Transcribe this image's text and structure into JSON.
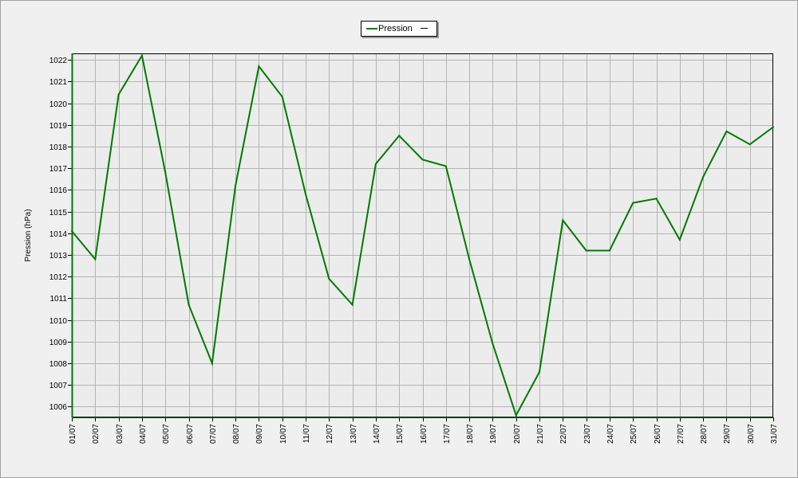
{
  "legend": {
    "label": "Pression"
  },
  "chart_data": {
    "type": "line",
    "title": "",
    "xlabel": "",
    "ylabel": "Pression (hPa)",
    "ylim": [
      1005.5,
      1022.3
    ],
    "yticks": [
      1006,
      1007,
      1008,
      1009,
      1010,
      1011,
      1012,
      1013,
      1014,
      1015,
      1016,
      1017,
      1018,
      1019,
      1020,
      1021,
      1022
    ],
    "grid": true,
    "legend_position": "top-center",
    "categories": [
      "01/07",
      "02/07",
      "03/07",
      "04/07",
      "05/07",
      "06/07",
      "07/07",
      "08/07",
      "09/07",
      "10/07",
      "11/07",
      "12/07",
      "13/07",
      "14/07",
      "15/07",
      "16/07",
      "17/07",
      "18/07",
      "19/07",
      "20/07",
      "21/07",
      "22/07",
      "23/07",
      "24/07",
      "25/07",
      "26/07",
      "27/07",
      "28/07",
      "29/07",
      "30/07",
      "31/07"
    ],
    "series": [
      {
        "name": "Pression",
        "color": "#007a00",
        "values": [
          1014.1,
          1012.8,
          1020.4,
          1022.2,
          1016.8,
          1010.7,
          1008.0,
          1016.2,
          1021.7,
          1020.3,
          1015.8,
          1011.9,
          1010.7,
          1017.2,
          1018.5,
          1017.4,
          1017.1,
          1012.8,
          1008.9,
          1005.6,
          1007.6,
          1014.6,
          1013.2,
          1013.2,
          1015.4,
          1015.6,
          1013.7,
          1016.6,
          1018.7,
          1018.1,
          1018.9
        ]
      }
    ]
  }
}
